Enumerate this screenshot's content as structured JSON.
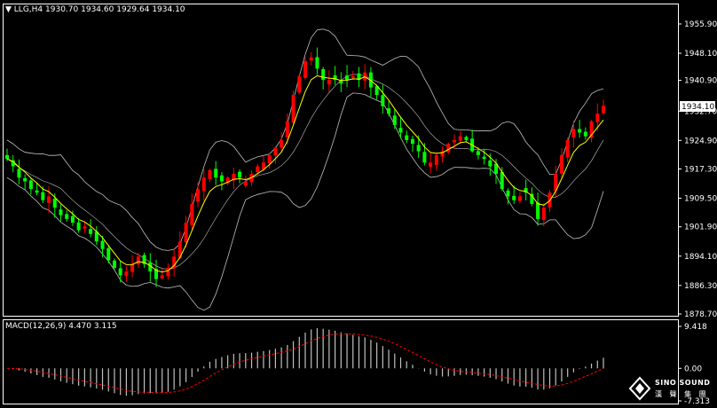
{
  "header": {
    "symbol": "LLG,H4",
    "open": "1930.70",
    "high": "1934.60",
    "low": "1929.64",
    "close": "1934.10"
  },
  "colors": {
    "up": "#ff0000",
    "down": "#00ff00",
    "ma": "#ffff00",
    "band": "#c0c0c0",
    "macd_hist": "#c0c0c0",
    "macd_signal": "#ff0000"
  },
  "chart_data": [
    {
      "type": "candlestick",
      "title": "",
      "y_ticks": [
        "1955.90",
        "1948.10",
        "1940.90",
        "1932.70",
        "1924.90",
        "1917.30",
        "1909.50",
        "1901.90",
        "1894.10",
        "1886.30",
        "1878.70"
      ],
      "ylim": [
        1878.7,
        1955.9
      ],
      "current_price": "1934.10",
      "indicators": [
        "Bollinger Bands",
        "Moving Average"
      ],
      "close_series": [
        1920,
        1918,
        1915,
        1914,
        1912,
        1911,
        1909,
        1910,
        1907,
        1905,
        1904,
        1903,
        1901,
        1902,
        1900,
        1898,
        1896,
        1893,
        1891,
        1889,
        1890,
        1892,
        1894,
        1892,
        1890,
        1888,
        1889,
        1891,
        1894,
        1898,
        1903,
        1908,
        1912,
        1915,
        1917,
        1915,
        1914,
        1915,
        1916,
        1915,
        1914,
        1916,
        1918,
        1919,
        1921,
        1923,
        1925,
        1930,
        1937,
        1942,
        1946,
        1947,
        1944,
        1941,
        1941,
        1941,
        1940,
        1941,
        1942,
        1941,
        1943,
        1939,
        1937,
        1934,
        1932,
        1929,
        1927,
        1925,
        1924,
        1922,
        1919,
        1919,
        1921,
        1922,
        1924,
        1925,
        1926,
        1925,
        1922,
        1921,
        1920,
        1918,
        1916,
        1912,
        1910,
        1909,
        1910,
        1911,
        1908,
        1904,
        1907,
        1911,
        1916,
        1921,
        1925,
        1928,
        1927,
        1926,
        1930,
        1932,
        1934.1
      ]
    },
    {
      "type": "bar",
      "title": "MACD(12,26,9)",
      "macd_value": "4.470",
      "signal_value": "3.115",
      "y_ticks": [
        "9.418",
        "0.00",
        "-7.313"
      ],
      "ylim": [
        -7.313,
        9.418
      ]
    }
  ],
  "logo": {
    "name": "SINO SOUND",
    "cn": "漢 聲 集 團"
  }
}
